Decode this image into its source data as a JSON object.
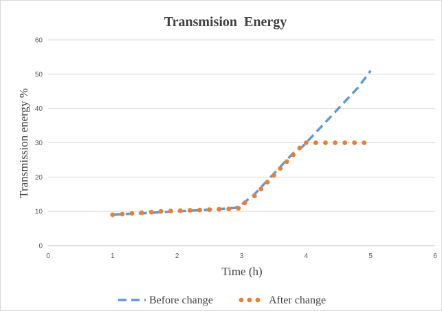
{
  "chart_data": {
    "type": "line",
    "title": "Transmision  Energy",
    "xlabel": "Time (h)",
    "ylabel": "Transmission energy %",
    "xlim": [
      0,
      6
    ],
    "ylim": [
      0,
      60
    ],
    "xticks": [
      0,
      1,
      2,
      3,
      4,
      5,
      6
    ],
    "yticks": [
      0,
      10,
      20,
      30,
      40,
      50,
      60
    ],
    "grid": "horizontal",
    "legend_position": "bottom",
    "series": [
      {
        "name": "Before change",
        "style": "dashed",
        "color": "#5b9bd5",
        "x": [
          1,
          1.5,
          2,
          2.5,
          2.9,
          3.0,
          3.2,
          3.4,
          3.6,
          3.8,
          3.95,
          4.2,
          4.5,
          4.8,
          5.0
        ],
        "y": [
          9,
          9.5,
          10,
          10.5,
          11,
          12,
          15,
          19,
          23,
          27,
          29,
          34,
          40,
          46,
          51
        ]
      },
      {
        "name": "After change",
        "style": "dotted",
        "color": "#ed7d31",
        "x": [
          1,
          1.15,
          1.3,
          1.45,
          1.6,
          1.75,
          1.9,
          2.05,
          2.2,
          2.35,
          2.5,
          2.65,
          2.8,
          2.95,
          3.05,
          3.2,
          3.3,
          3.4,
          3.5,
          3.6,
          3.7,
          3.8,
          3.9,
          4.0,
          4.15,
          4.3,
          4.45,
          4.6,
          4.75,
          4.9
        ],
        "y": [
          9,
          9.2,
          9.4,
          9.6,
          9.8,
          10.0,
          10.1,
          10.2,
          10.3,
          10.4,
          10.5,
          10.6,
          10.7,
          10.9,
          12.5,
          14.5,
          16.5,
          18.5,
          20.5,
          22.5,
          24.5,
          26.5,
          28.5,
          30,
          30,
          30,
          30,
          30,
          30,
          30
        ]
      }
    ]
  }
}
